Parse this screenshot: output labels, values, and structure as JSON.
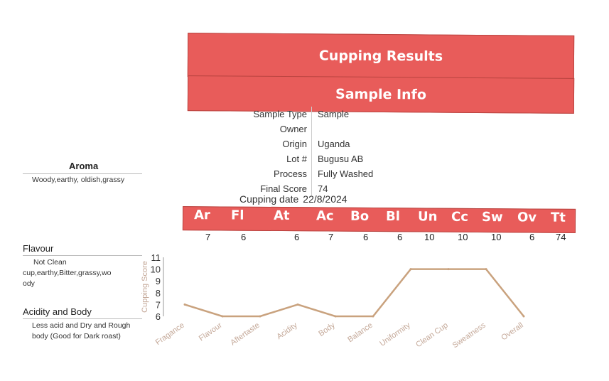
{
  "header": {
    "title": "Cupping Results",
    "subtitle": "Sample Info"
  },
  "sample_info": [
    {
      "label": "Sample Type",
      "value": "Sample"
    },
    {
      "label": "Owner",
      "value": ""
    },
    {
      "label": "Origin",
      "value": "Uganda"
    },
    {
      "label": "Lot #",
      "value": "Bugusu AB"
    },
    {
      "label": "Process",
      "value": "Fully Washed"
    },
    {
      "label": "Final Score",
      "value": "74"
    }
  ],
  "cupping_date": {
    "label": "Cupping date",
    "value": "22/8/2024"
  },
  "score_bar": {
    "abbreviations": [
      "Ar",
      "Fl",
      "At",
      "Ac",
      "Bo",
      "Bl",
      "Un",
      "Cc",
      "Sw",
      "Ov",
      "Tt"
    ],
    "scores": [
      "7",
      "6",
      "6",
      "7",
      "6",
      "6",
      "10",
      "10",
      "10",
      "6",
      "74"
    ]
  },
  "sections": {
    "aroma": {
      "title": "Aroma",
      "desc": "Woody,earthy, oldish,grassy"
    },
    "flavour": {
      "title": "Flavour",
      "desc_lines": [
        "Not Clean",
        "cup,earthy,Bitter,grassy,wo",
        "ody"
      ]
    },
    "acidity_body": {
      "title": "Acidity and Body",
      "desc_lines": [
        "Less acid and Dry and Rough",
        "body (Good for Dark roast)"
      ]
    }
  },
  "chart_data": {
    "type": "line",
    "categories": [
      "Fragance",
      "Flavour",
      "Aftertaste",
      "Acidity",
      "Body",
      "Balance",
      "Uniformity",
      "Clean Cup",
      "Sweatness",
      "Overall"
    ],
    "values": [
      7,
      6,
      6,
      7,
      6,
      6,
      10,
      10,
      10,
      6
    ],
    "ylabel": "Cupping Score",
    "ylim": [
      6,
      11
    ],
    "yticks": [
      6,
      7,
      8,
      9,
      10,
      11
    ],
    "line_color": "#c9a27e",
    "label_color": "#c4a898"
  },
  "colors": {
    "banner": "#e85c5a"
  }
}
